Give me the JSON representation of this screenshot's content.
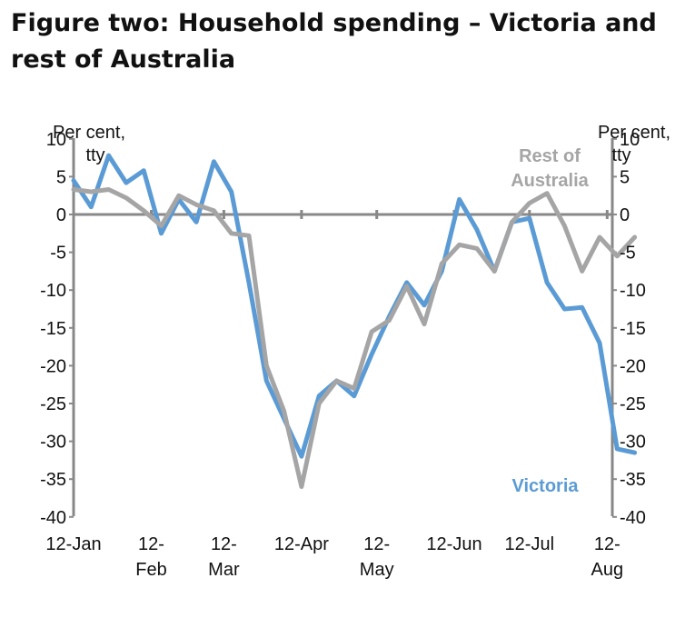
{
  "title": "Figure two: Household spending – Victoria and rest of Australia",
  "chart_data": {
    "type": "line",
    "title": "Figure two: Household spending – Victoria and rest of Australia",
    "left_axis_label": [
      "Per cent,",
      "tty"
    ],
    "right_axis_label": [
      "Per cent,",
      "tty"
    ],
    "ylim": [
      -40,
      10
    ],
    "yticks": [
      10,
      5,
      0,
      -5,
      -10,
      -15,
      -20,
      -25,
      -30,
      -35,
      -40
    ],
    "xlim": [
      0,
      31
    ],
    "x_ticks": [
      {
        "x": 0,
        "lines": [
          "12-Jan"
        ]
      },
      {
        "x": 4.43,
        "lines": [
          "12-",
          "Feb"
        ]
      },
      {
        "x": 8.57,
        "lines": [
          "12-",
          "Mar"
        ]
      },
      {
        "x": 13,
        "lines": [
          "12-Apr"
        ]
      },
      {
        "x": 17.29,
        "lines": [
          "12-",
          "May"
        ]
      },
      {
        "x": 21.71,
        "lines": [
          "12-Jun"
        ]
      },
      {
        "x": 26,
        "lines": [
          "12-Jul"
        ]
      },
      {
        "x": 30.43,
        "lines": [
          "12-",
          "Aug"
        ]
      }
    ],
    "series": [
      {
        "name": "Victoria",
        "color": "#5b9bd5",
        "label_lines": [
          "Victoria"
        ],
        "values": [
          4.5,
          1,
          7.8,
          4.2,
          5.8,
          -2.5,
          2,
          -1,
          7,
          3,
          -9,
          -22,
          -27,
          -32,
          -24,
          -22,
          -24,
          -18.5,
          -13.5,
          -9,
          -12,
          -7.5,
          2,
          -2,
          -7.5,
          -1,
          -0.5,
          -9,
          -12.5,
          -12.3,
          -17,
          -31,
          -31.5
        ]
      },
      {
        "name": "Rest of Australia",
        "color": "#a5a5a5",
        "label_lines": [
          "Rest of",
          "Australia"
        ],
        "values": [
          3.3,
          3,
          3.3,
          2.2,
          0.5,
          -1.5,
          2.5,
          1.3,
          0.5,
          -2.5,
          -2.8,
          -20,
          -26,
          -36,
          -25,
          -22,
          -23,
          -15.5,
          -14,
          -9.5,
          -14.5,
          -6.5,
          -4,
          -4.5,
          -7.5,
          -1,
          1.5,
          2.8,
          -1.5,
          -7.5,
          -3,
          -5.5,
          -3
        ]
      }
    ],
    "grid": false,
    "legend": "inline labels"
  }
}
